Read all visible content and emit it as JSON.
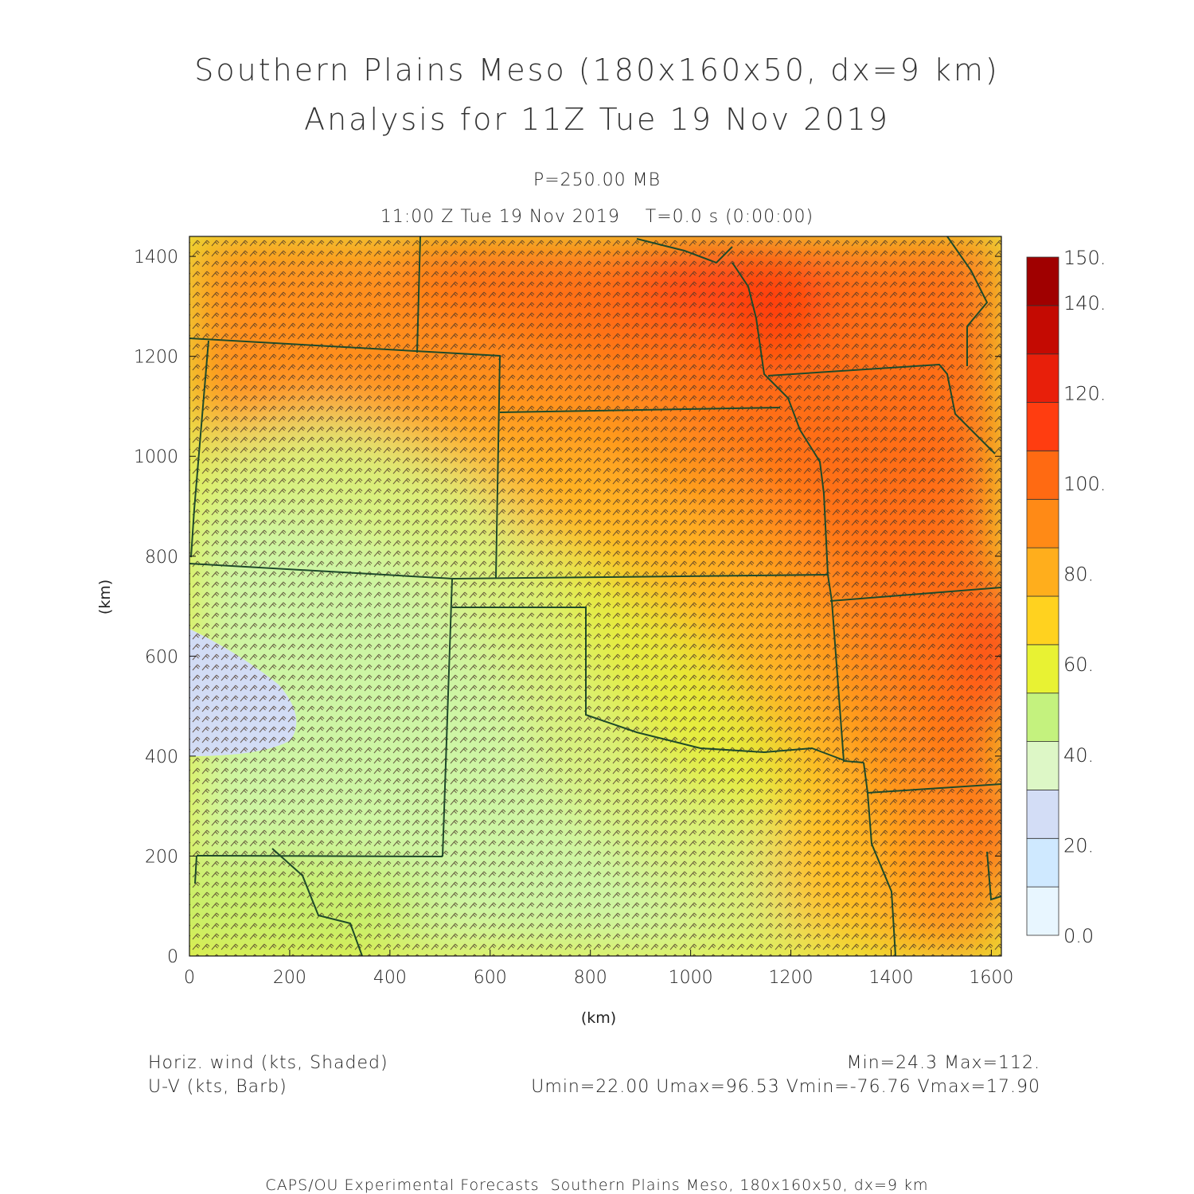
{
  "header": {
    "title_line1": "Southern Plains Meso (180x160x50, dx=9 km)",
    "title_line2": "Analysis for 11Z Tue 19 Nov 2019",
    "level": "P=250.00 MB",
    "valid_time": "11:00 Z Tue 19 Nov 2019    T=0.0 s (0:00:00)"
  },
  "axes": {
    "x_label": "(km)",
    "y_label": "(km)",
    "x_ticks": [
      "0",
      "200",
      "400",
      "600",
      "800",
      "1000",
      "1200",
      "1400",
      "1600"
    ],
    "y_ticks": [
      "0",
      "200",
      "400",
      "600",
      "800",
      "1000",
      "1200",
      "1400"
    ],
    "x_range": [
      0,
      1620
    ],
    "y_range": [
      0,
      1440
    ]
  },
  "colorbar": {
    "labels": [
      "0.0",
      "20.",
      "40.",
      "60.",
      "80.",
      "100.",
      "120.",
      "140.",
      "150."
    ],
    "colors": [
      "#e8f6ff",
      "#cfe9ff",
      "#d3ddf6",
      "#ddf7c6",
      "#c4f27e",
      "#e8f233",
      "#ffd21f",
      "#ffae1c",
      "#ff8a16",
      "#ff6a12",
      "#ff3d10",
      "#e81f0a",
      "#c40a02",
      "#a00000"
    ]
  },
  "legend": {
    "field1": "Horiz. wind (kts, Shaded)",
    "field2": "U-V (kts, Barb)",
    "stats1": "Min=24.3 Max=112.",
    "stats2": "Umin=22.00 Umax=96.53 Vmin=-76.76 Vmax=17.90"
  },
  "footer": {
    "text": "CAPS/OU Experimental Forecasts  Southern Plains Meso, 180x160x50, dx=9 km"
  }
}
